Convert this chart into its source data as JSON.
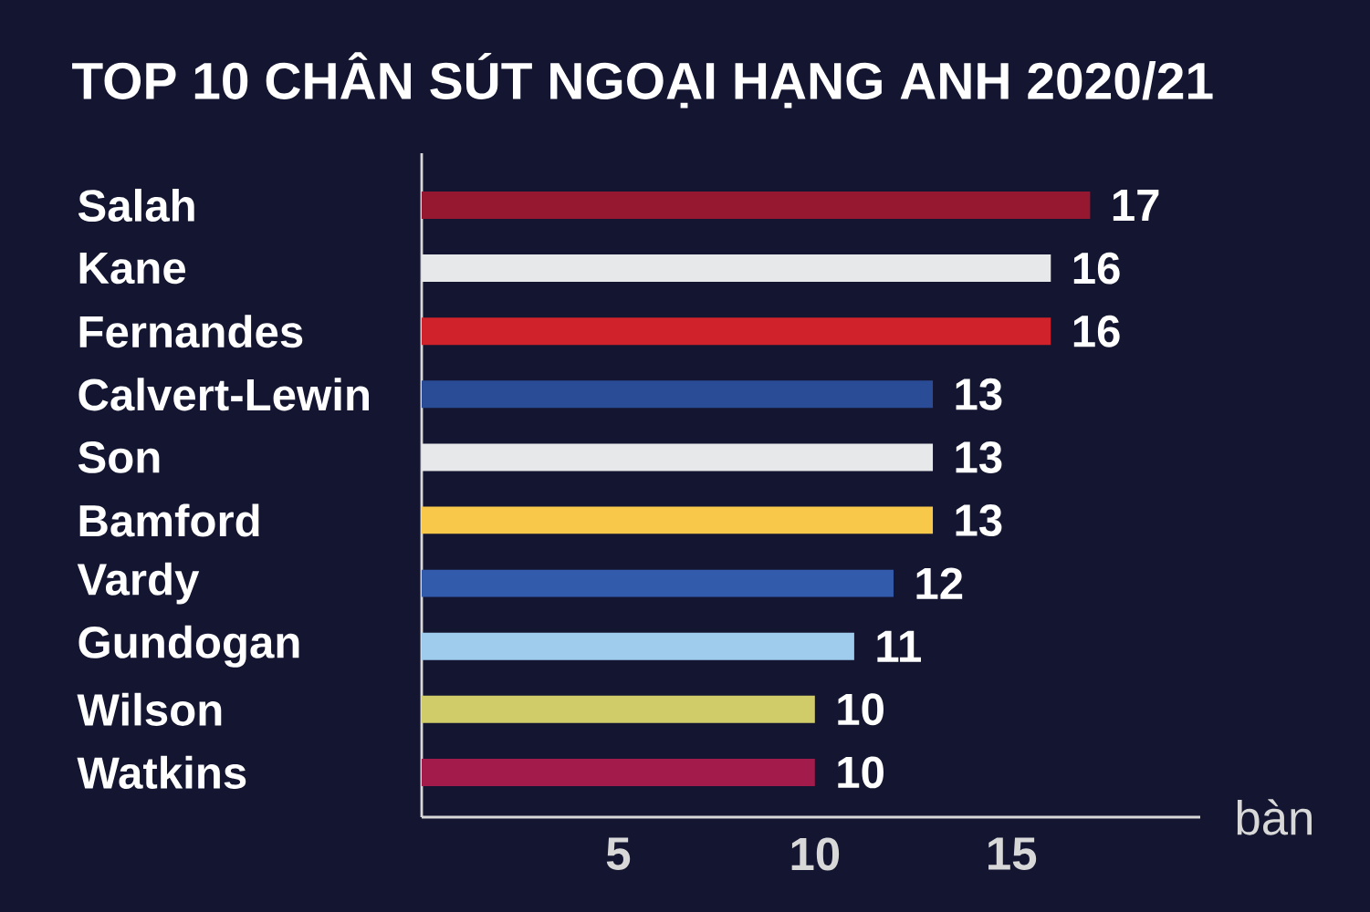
{
  "chart_data": {
    "type": "bar",
    "orientation": "horizontal",
    "title": "TOP 10 CHÂN SÚT NGOẠI HẠNG ANH 2020/21",
    "xlabel": "bàn",
    "categories": [
      "Salah",
      "Kane",
      "Fernandes",
      "Calvert-Lewin",
      "Son",
      "Bamford",
      "Vardy",
      "Gundogan",
      "Wilson",
      "Watkins"
    ],
    "values": [
      17,
      16,
      16,
      13,
      13,
      13,
      12,
      11,
      10,
      10
    ],
    "colors": [
      "#961830",
      "#e6e8ea",
      "#d0222a",
      "#2a4b96",
      "#e6e8ea",
      "#f8c84b",
      "#335bab",
      "#9fcbec",
      "#d0cc6a",
      "#a31b4a"
    ],
    "xlim": [
      0,
      19.8
    ],
    "xticks": [
      5,
      10,
      15
    ],
    "data_labels": true,
    "grid": false
  }
}
